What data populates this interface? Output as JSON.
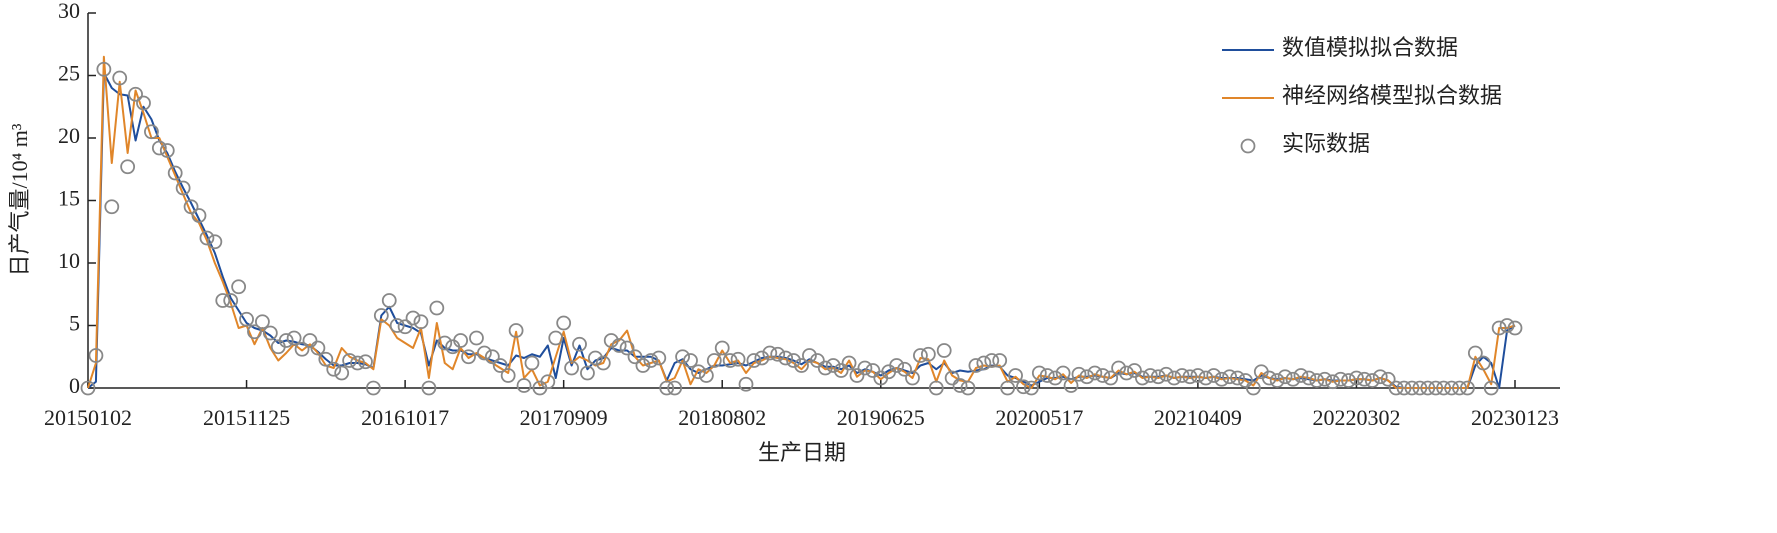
{
  "chart_data": {
    "type": "line",
    "ylabel": "日产气量/10⁴ m³",
    "xlabel": "生产日期",
    "categories": [
      "20150102",
      null,
      null,
      null,
      null,
      null,
      null,
      null,
      null,
      null,
      null,
      null,
      null,
      null,
      null,
      null,
      null,
      null,
      null,
      null,
      "20151125",
      null,
      null,
      null,
      null,
      null,
      null,
      null,
      null,
      null,
      null,
      null,
      null,
      null,
      null,
      null,
      null,
      null,
      null,
      null,
      "20161017",
      null,
      null,
      null,
      null,
      null,
      null,
      null,
      null,
      null,
      null,
      null,
      null,
      null,
      null,
      null,
      null,
      null,
      null,
      null,
      "20170909",
      null,
      null,
      null,
      null,
      null,
      null,
      null,
      null,
      null,
      null,
      null,
      null,
      null,
      null,
      null,
      null,
      null,
      null,
      null,
      "20180802",
      null,
      null,
      null,
      null,
      null,
      null,
      null,
      null,
      null,
      null,
      null,
      null,
      null,
      null,
      null,
      null,
      null,
      null,
      null,
      "20190625",
      null,
      null,
      null,
      null,
      null,
      null,
      null,
      null,
      null,
      null,
      null,
      null,
      null,
      null,
      null,
      null,
      null,
      null,
      null,
      "20200517",
      null,
      null,
      null,
      null,
      null,
      null,
      null,
      null,
      null,
      null,
      null,
      null,
      null,
      null,
      null,
      null,
      null,
      null,
      null,
      "20210409",
      null,
      null,
      null,
      null,
      null,
      null,
      null,
      null,
      null,
      null,
      null,
      null,
      null,
      null,
      null,
      null,
      null,
      null,
      null,
      "20220302",
      null,
      null,
      null,
      null,
      null,
      null,
      null,
      null,
      null,
      null,
      null,
      null,
      null,
      null,
      null,
      null,
      null,
      null,
      null,
      "20230123"
    ],
    "ylim": [
      0,
      30
    ],
    "yticks": [
      0,
      5,
      10,
      15,
      20,
      25,
      30
    ],
    "legend": "upper right",
    "series": [
      {
        "name": "数值模拟拟合数据",
        "color": "#1f4e9c",
        "mode": "lines",
        "values": [
          0,
          0.5,
          25.2,
          24.0,
          23.5,
          23.4,
          19.8,
          22.5,
          21.5,
          19.8,
          18.8,
          17.3,
          16.0,
          14.8,
          13.5,
          12.2,
          10.8,
          8.9,
          7.2,
          6.2,
          5.2,
          4.8,
          4.6,
          4.2,
          3.6,
          3.8,
          3.7,
          3.5,
          3.4,
          2.9,
          2.3,
          1.8,
          1.8,
          2.0,
          2.0,
          1.9,
          1.6,
          5.8,
          6.5,
          5.2,
          5.0,
          4.8,
          4.4,
          1.8,
          3.8,
          3.2,
          3.0,
          3.0,
          2.7,
          2.7,
          2.4,
          2.2,
          2.0,
          1.8,
          2.6,
          2.4,
          2.7,
          2.5,
          3.4,
          0.8,
          4.0,
          1.8,
          3.4,
          1.5,
          2.2,
          2.4,
          3.2,
          3.0,
          3.0,
          2.5,
          2.5,
          2.5,
          2.2,
          0.6,
          2.0,
          2.3,
          1.5,
          1.2,
          1.5,
          1.8,
          1.8,
          1.9,
          2.0,
          1.8,
          2.1,
          2.4,
          2.5,
          2.5,
          2.4,
          2.2,
          1.9,
          2.3,
          2.0,
          1.7,
          1.7,
          1.5,
          1.8,
          1.2,
          1.5,
          1.3,
          1.0,
          1.4,
          1.6,
          1.4,
          1.2,
          1.8,
          2.0,
          1.5,
          2.0,
          1.2,
          1.4,
          1.3,
          1.4,
          1.5,
          1.8,
          1.7,
          1.0,
          0.8,
          0.5,
          0.2,
          0.5,
          0.8,
          0.8,
          0.9,
          0.7,
          0.9,
          0.9,
          1.0,
          0.9,
          0.8,
          1.2,
          1.1,
          1.2,
          0.9,
          0.9,
          0.9,
          1.0,
          0.8,
          0.9,
          0.9,
          0.9,
          0.8,
          0.9,
          0.8,
          0.8,
          0.8,
          0.7,
          0.6,
          1.0,
          0.8,
          0.7,
          0.8,
          0.7,
          0.8,
          0.7,
          0.6,
          0.7,
          0.6,
          0.6,
          0.6,
          0.7,
          0.7,
          0.6,
          0.8,
          0.6,
          0.1,
          0,
          0,
          0,
          0,
          0,
          0,
          0,
          0,
          0,
          1.8,
          2.5,
          2.0,
          0,
          4.6,
          5.0
        ]
      },
      {
        "name": "神经网络模型拟合数据",
        "color": "#e0862a",
        "mode": "lines",
        "values": [
          0,
          2.0,
          26.5,
          18.0,
          24.5,
          18.8,
          23.8,
          22.0,
          20.0,
          20.0,
          18.5,
          17.0,
          15.5,
          14.0,
          13.2,
          11.8,
          10.0,
          8.5,
          6.8,
          4.8,
          5.0,
          3.5,
          4.8,
          3.2,
          2.2,
          2.8,
          3.5,
          3.0,
          3.5,
          2.8,
          1.8,
          1.6,
          3.2,
          2.5,
          2.2,
          2.0,
          1.5,
          5.5,
          5.0,
          4.0,
          3.6,
          3.2,
          4.8,
          0.8,
          5.2,
          2.0,
          1.5,
          3.2,
          2.4,
          2.8,
          2.4,
          2.0,
          1.6,
          1.2,
          4.5,
          0.8,
          1.5,
          0.2,
          0.5,
          2.5,
          4.5,
          2.0,
          2.5,
          2.2,
          1.8,
          2.0,
          3.5,
          3.8,
          4.6,
          2.5,
          1.8,
          2.0,
          2.2,
          0.5,
          0.8,
          2.2,
          0.3,
          1.5,
          1.2,
          1.8,
          3.0,
          2.0,
          2.2,
          1.2,
          2.0,
          2.2,
          2.5,
          2.4,
          2.3,
          2.0,
          1.5,
          2.2,
          2.0,
          1.5,
          1.6,
          1.2,
          2.2,
          0.9,
          1.4,
          1.3,
          0.7,
          1.2,
          1.6,
          1.3,
          0.8,
          2.4,
          2.3,
          0.5,
          2.2,
          1.0,
          0.6,
          0.5,
          1.6,
          1.8,
          1.7,
          1.8,
          0.5,
          0.9,
          0.3,
          0,
          1.0,
          0.9,
          0.7,
          1.1,
          0.4,
          1.0,
          0.8,
          1.1,
          0.9,
          0.8,
          1.4,
          1.1,
          1.3,
          0.8,
          0.9,
          0.8,
          1.0,
          0.8,
          0.9,
          0.8,
          0.9,
          0.8,
          0.9,
          0.7,
          0.8,
          0.7,
          0.6,
          0.2,
          1.2,
          0.8,
          0.6,
          0.8,
          0.7,
          0.9,
          0.8,
          0.6,
          0.7,
          0.5,
          0.6,
          0.6,
          0.7,
          0.7,
          0.6,
          0.8,
          0.6,
          0,
          0,
          0,
          0,
          0,
          0,
          0,
          0,
          0,
          0,
          2.5,
          1.5,
          0.3,
          4.8,
          4.8,
          5.0
        ]
      },
      {
        "name": "实际数据",
        "color": "#888888",
        "mode": "markers",
        "values": [
          0,
          2.6,
          25.5,
          14.5,
          24.8,
          17.7,
          23.5,
          22.8,
          20.5,
          19.2,
          19.0,
          17.2,
          16.0,
          14.5,
          13.8,
          12.0,
          11.7,
          7.0,
          7.0,
          8.1,
          5.5,
          4.5,
          5.3,
          4.4,
          3.3,
          3.8,
          4.0,
          3.1,
          3.8,
          3.2,
          2.3,
          1.5,
          1.2,
          2.2,
          2.0,
          2.1,
          0,
          5.8,
          7.0,
          5.0,
          4.9,
          5.6,
          5.3,
          0,
          6.4,
          3.6,
          3.3,
          3.8,
          2.5,
          4.0,
          2.8,
          2.5,
          1.8,
          1.0,
          4.6,
          0.2,
          2.0,
          0,
          0.5,
          4.0,
          5.2,
          1.6,
          3.5,
          1.2,
          2.4,
          2.0,
          3.8,
          3.4,
          3.2,
          2.5,
          1.8,
          2.2,
          2.4,
          0,
          0,
          2.5,
          2.2,
          1.3,
          1.0,
          2.2,
          3.2,
          2.2,
          2.3,
          0.3,
          2.2,
          2.4,
          2.8,
          2.7,
          2.4,
          2.2,
          1.8,
          2.6,
          2.2,
          1.6,
          1.8,
          1.4,
          2.0,
          1.0,
          1.6,
          1.4,
          0.8,
          1.3,
          1.8,
          1.5,
          0.8,
          2.6,
          2.7,
          0,
          3.0,
          0.8,
          0.2,
          0,
          1.8,
          2.0,
          2.2,
          2.2,
          0,
          1.0,
          0.1,
          0,
          1.2,
          1.0,
          0.8,
          1.2,
          0.2,
          1.1,
          0.9,
          1.2,
          1.0,
          0.8,
          1.6,
          1.2,
          1.4,
          0.8,
          1.0,
          0.9,
          1.1,
          0.8,
          1.0,
          0.9,
          1.0,
          0.8,
          1.0,
          0.7,
          0.9,
          0.8,
          0.6,
          0,
          1.3,
          0.8,
          0.6,
          0.9,
          0.7,
          1.0,
          0.8,
          0.6,
          0.7,
          0.5,
          0.7,
          0.6,
          0.8,
          0.7,
          0.6,
          0.9,
          0.7,
          0,
          0,
          0,
          0,
          0,
          0,
          0,
          0,
          0,
          0,
          2.8,
          2.0,
          0,
          4.8,
          5.0,
          4.8
        ]
      }
    ]
  }
}
